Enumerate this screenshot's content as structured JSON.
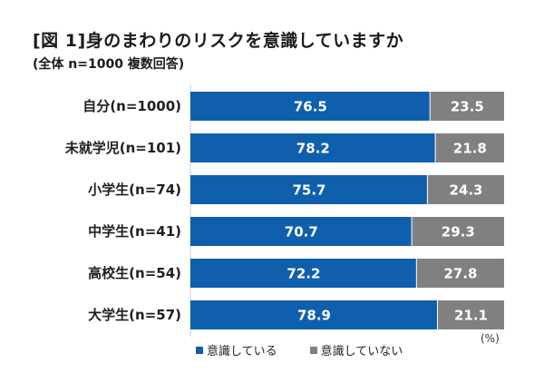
{
  "title": "[図 1]身のまわりのリスクを意識していますか",
  "subtitle": "(全体 n=1000 複数回答)",
  "unit": "(%)",
  "colors": {
    "aware": "#0f5fad",
    "unaware": "#808080",
    "axis": "#cfcfcf"
  },
  "chart_data": {
    "type": "bar",
    "orientation": "horizontal",
    "stacked": true,
    "percent_stacked": true,
    "categories": [
      "自分(n=1000)",
      "未就学児(n=101)",
      "小学生(n=74)",
      "中学生(n=41)",
      "高校生(n=54)",
      "大学生(n=57)"
    ],
    "series": [
      {
        "name": "意識している",
        "values": [
          76.5,
          78.2,
          75.7,
          70.7,
          72.2,
          78.9
        ]
      },
      {
        "name": "意識していない",
        "values": [
          23.5,
          21.8,
          24.3,
          29.3,
          27.8,
          21.1
        ]
      }
    ],
    "xlim": [
      0,
      100
    ],
    "ylabel": "",
    "xlabel": "",
    "legend": "bottom",
    "grid": false
  }
}
